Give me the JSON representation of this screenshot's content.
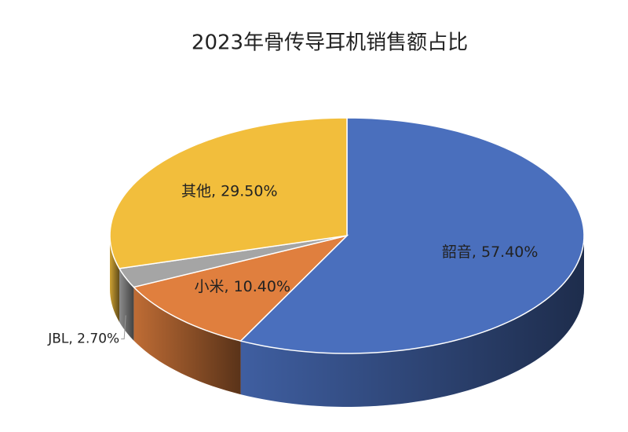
{
  "chart_data": {
    "type": "pie3d",
    "title": "2023年骨传导耳机销售额占比",
    "values": [
      57.4,
      10.4,
      2.7,
      29.5
    ],
    "value_labels": [
      "韶音, 57.40%",
      "小米, 10.40%",
      "JBL, 2.70%",
      "其他, 29.50%"
    ],
    "colors": [
      "#4a6fbd",
      "#e07f3e",
      "#a5a5a5",
      "#f2be3c"
    ]
  }
}
